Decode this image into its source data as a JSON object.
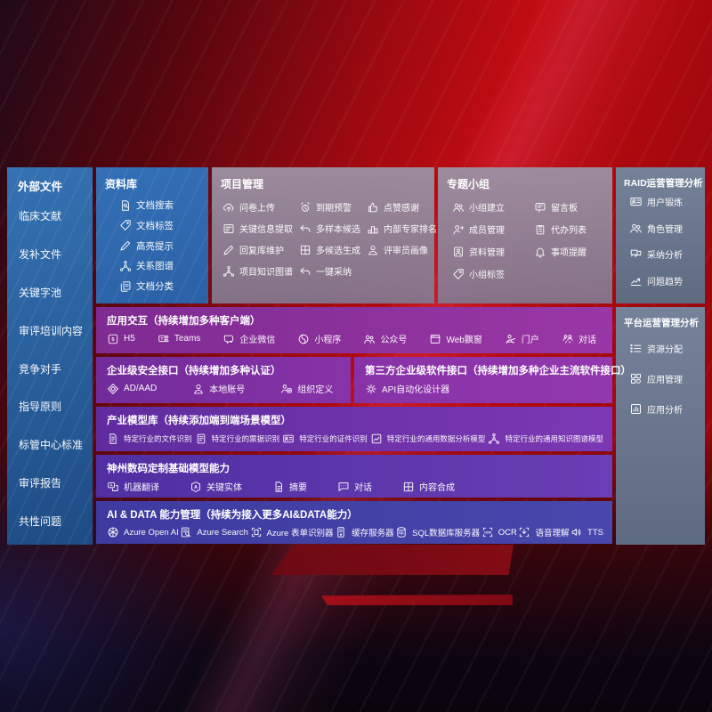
{
  "colors": {
    "background_red": "#b50b10",
    "panel_blue": "#2f6db3",
    "panel_mauve": "#93889e",
    "panel_slate": "#6e7a8d",
    "row_purple": "#8a2f9e",
    "row_indigo": "#4140a1",
    "text": "#ffffff"
  },
  "external_panel": {
    "title": "外部文件",
    "items": [
      "临床文献",
      "发补文件",
      "关键字池",
      "审评培训内容",
      "竞争对手",
      "指导原则",
      "标管中心标准",
      "审评报告",
      "共性问题"
    ]
  },
  "library_panel": {
    "title": "资料库",
    "items": [
      {
        "icon": "doc-search-icon",
        "label": "文档搜索"
      },
      {
        "icon": "tag-icon",
        "label": "文档标签"
      },
      {
        "icon": "highlight-pen-icon",
        "label": "高亮提示"
      },
      {
        "icon": "knowledge-graph-icon",
        "label": "关系图谱"
      },
      {
        "icon": "doc-copy-icon",
        "label": "文档分类"
      }
    ]
  },
  "project_panel": {
    "title": "项目管理",
    "items": [
      {
        "icon": "cloud-upload-icon",
        "label": "问卷上传"
      },
      {
        "icon": "alarm-icon",
        "label": "到期预警"
      },
      {
        "icon": "thumbs-up-icon",
        "label": "点赞感谢"
      },
      {
        "icon": "doc-extract-icon",
        "label": "关键信息提取"
      },
      {
        "icon": "reply-arrow-icon",
        "label": "多样本候选"
      },
      {
        "icon": "ranking-icon",
        "label": "内部专家排名"
      },
      {
        "icon": "edit-pen-icon",
        "label": "回复库维护"
      },
      {
        "icon": "generate-grid-icon",
        "label": "多候选生成"
      },
      {
        "icon": "person-icon",
        "label": "评审员画像"
      },
      {
        "icon": "knowledge-graph-icon",
        "label": "项目知识图谱"
      },
      {
        "icon": "adopt-arrow-icon",
        "label": "一键采纳"
      }
    ]
  },
  "group_panel": {
    "title": "专题小组",
    "items": [
      {
        "icon": "people-icon",
        "label": "小组建立"
      },
      {
        "icon": "bbs-board-icon",
        "label": "留言板"
      },
      {
        "icon": "person-add-icon",
        "label": "成员管理"
      },
      {
        "icon": "todo-list-icon",
        "label": "代办列表"
      },
      {
        "icon": "album-icon",
        "label": "资料管理"
      },
      {
        "icon": "bell-icon",
        "label": "事项提醒"
      },
      {
        "icon": "tag-icon",
        "label": "小组标签"
      }
    ]
  },
  "raid_panel": {
    "title": "RAID运营管理分析",
    "items": [
      {
        "icon": "id-card-icon",
        "label": "用户锻炼"
      },
      {
        "icon": "role-people-icon",
        "label": "角色管理"
      },
      {
        "icon": "qa-chat-icon",
        "label": "采纳分析"
      },
      {
        "icon": "trend-chart-icon",
        "label": "问题趋势"
      }
    ]
  },
  "platform_panel": {
    "title": "平台运营管理分析",
    "items": [
      {
        "icon": "resource-list-icon",
        "label": "资源分配"
      },
      {
        "icon": "apps-grid-icon",
        "label": "应用管理"
      },
      {
        "icon": "chart-box-icon",
        "label": "应用分析"
      }
    ]
  },
  "interaction_row": {
    "title": "应用交互（持续增加多种客户端）",
    "items": [
      {
        "icon": "h5-icon",
        "label": "H5"
      },
      {
        "icon": "teams-icon",
        "label": "Teams"
      },
      {
        "icon": "wechat-work-icon",
        "label": "企业微信"
      },
      {
        "icon": "miniprogram-icon",
        "label": "小程序"
      },
      {
        "icon": "official-account-icon",
        "label": "公众号"
      },
      {
        "icon": "web-window-icon",
        "label": "Web飘窗"
      },
      {
        "icon": "portal-icon",
        "label": "门户"
      },
      {
        "icon": "dialog-icon",
        "label": "对话"
      }
    ]
  },
  "security_row": {
    "title": "企业级安全接口（持续增加多种认证）",
    "items": [
      {
        "icon": "ad-shield-icon",
        "label": "AD/AAD"
      },
      {
        "icon": "local-account-icon",
        "label": "本地账号"
      },
      {
        "icon": "org-define-icon",
        "label": "组织定义"
      }
    ]
  },
  "thirdparty_row": {
    "title": "第三方企业级软件接口（持续增加多种企业主流软件接口）",
    "items": [
      {
        "icon": "api-gear-icon",
        "label": "API自动化设计器"
      }
    ]
  },
  "industry_row": {
    "title": "产业模型库（持续添加端到端场景模型）",
    "items": [
      {
        "icon": "file-recognize-icon",
        "label": "特定行业的文件识别"
      },
      {
        "icon": "receipt-icon",
        "label": "特定行业的票据识别"
      },
      {
        "icon": "id-card-icon",
        "label": "特定行业的证件识别"
      },
      {
        "icon": "data-model-icon",
        "label": "特定行业的通用数据分析模型"
      },
      {
        "icon": "knowledge-graph-icon",
        "label": "特定行业的通用知识图谱模型"
      }
    ]
  },
  "base_model_row": {
    "title": "神州数码定制基础模型能力",
    "items": [
      {
        "icon": "translate-icon",
        "label": "机器翻译"
      },
      {
        "icon": "entity-icon",
        "label": "关键实体"
      },
      {
        "icon": "summary-doc-icon",
        "label": "摘要"
      },
      {
        "icon": "chat-icon",
        "label": "对话"
      },
      {
        "icon": "compose-grid-icon",
        "label": "内容合成"
      }
    ]
  },
  "aidata_row": {
    "title": "AI & DATA 能力管理（持续为接入更多AI&DATA能力）",
    "items": [
      {
        "icon": "openai-icon",
        "label": "Azure Open AI"
      },
      {
        "icon": "azure-search-icon",
        "label": "Azure Search"
      },
      {
        "icon": "form-recognizer-icon",
        "label": "Azure 表单识别器"
      },
      {
        "icon": "cache-server-icon",
        "label": "缓存服务器"
      },
      {
        "icon": "sql-db-icon",
        "label": "SQL数据库服务器"
      },
      {
        "icon": "ocr-icon",
        "label": "OCR"
      },
      {
        "icon": "speech-icon",
        "label": "语音理解"
      },
      {
        "icon": "tts-icon",
        "label": "TTS"
      }
    ]
  }
}
